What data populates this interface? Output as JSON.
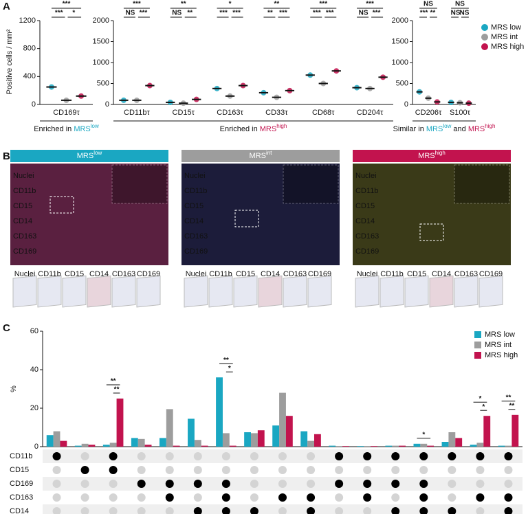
{
  "panel_labels": [
    "A",
    "B",
    "C"
  ],
  "chart_data": [
    {
      "type": "dot",
      "y_label": "Positive cells / mm²",
      "categories": [
        "CD169τ"
      ],
      "series": [
        {
          "color": "#1aa7c2",
          "values": [
            250
          ]
        },
        {
          "color": "#9d9d9d",
          "values": [
            60
          ]
        },
        {
          "color": "#c2134e",
          "values": [
            120
          ]
        }
      ],
      "ylim": [
        0,
        1200
      ],
      "yticks": [
        0,
        400,
        800,
        1200
      ],
      "significance": [
        [
          "***",
          "***",
          "*"
        ]
      ],
      "group_label": [
        {
          "text": "Enriched in "
        },
        {
          "text": "MRS",
          "color": "#1aa7c2"
        },
        {
          "text": "low",
          "color": "#1aa7c2",
          "sup": true
        }
      ]
    },
    {
      "type": "dot",
      "categories": [
        "CD11bτ",
        "CD15τ",
        "CD163τ",
        "CD33τ",
        "CD68τ",
        "CD204τ"
      ],
      "series": [
        {
          "color": "#1aa7c2",
          "values": [
            100,
            50,
            380,
            280,
            700,
            400
          ]
        },
        {
          "color": "#9d9d9d",
          "values": [
            100,
            30,
            200,
            170,
            500,
            380
          ]
        },
        {
          "color": "#c2134e",
          "values": [
            450,
            120,
            450,
            330,
            800,
            650
          ]
        }
      ],
      "ylim": [
        0,
        2000
      ],
      "yticks": [
        0,
        500,
        1000,
        1500,
        2000
      ],
      "significance": [
        [
          "***",
          "NS",
          "***"
        ],
        [
          "**",
          "NS",
          "**"
        ],
        [
          "*",
          "***",
          "***"
        ],
        [
          "**",
          "**",
          "***"
        ],
        [
          "***",
          "***",
          "***"
        ],
        [
          "***",
          "NS",
          "***"
        ]
      ],
      "group_label": [
        {
          "text": "Enriched in "
        },
        {
          "text": "MRS",
          "color": "#c2134e"
        },
        {
          "text": "high",
          "color": "#c2134e",
          "sup": true
        }
      ]
    },
    {
      "type": "dot",
      "categories": [
        "CD206τ",
        "S100τ"
      ],
      "series": [
        {
          "name": "MRS low",
          "color": "#1aa7c2",
          "values": [
            300,
            50
          ]
        },
        {
          "name": "MRS int",
          "color": "#9d9d9d",
          "values": [
            150,
            40
          ]
        },
        {
          "name": "MRS high",
          "color": "#c2134e",
          "values": [
            60,
            30
          ]
        }
      ],
      "ylim": [
        0,
        2000
      ],
      "yticks": [
        0,
        500,
        1000,
        1500,
        2000
      ],
      "significance": [
        [
          "NS",
          "***",
          "**"
        ],
        [
          "NS",
          "NS",
          "NS"
        ]
      ],
      "group_label": [
        {
          "text": "Similar in "
        },
        {
          "text": "MRS",
          "color": "#1aa7c2"
        },
        {
          "text": "low",
          "color": "#1aa7c2",
          "sup": true
        },
        {
          "text": " and "
        },
        {
          "text": "MRS",
          "color": "#c2134e"
        },
        {
          "text": "high",
          "color": "#c2134e",
          "sup": true
        }
      ]
    },
    {
      "type": "bar",
      "y_label": "%",
      "categories": [
        null,
        null,
        null,
        null,
        null,
        null,
        null,
        null,
        null,
        null,
        null,
        null,
        null,
        null,
        null,
        null,
        null
      ],
      "series": [
        {
          "name": "MRS low",
          "color": "#1aa7c2",
          "values": [
            6,
            0.5,
            1,
            4.5,
            4.5,
            14.5,
            36,
            7.5,
            11,
            8,
            0.5,
            0.3,
            0.5,
            1.5,
            2.5,
            1,
            0.5
          ]
        },
        {
          "name": "MRS int",
          "color": "#9d9d9d",
          "values": [
            8,
            1.5,
            2,
            4,
            19.5,
            3.5,
            7,
            7,
            28,
            3,
            0.3,
            0.3,
            0.5,
            1.5,
            7.5,
            2,
            0.5
          ]
        },
        {
          "name": "MRS high",
          "color": "#c2134e",
          "values": [
            3,
            1,
            25,
            1,
            0.5,
            0.5,
            0.5,
            8.5,
            16,
            6.5,
            0.3,
            0.3,
            0.5,
            0.5,
            4.5,
            16,
            16.5
          ]
        }
      ],
      "ylim": [
        0,
        60
      ],
      "yticks": [
        0,
        20,
        40,
        60
      ],
      "significance": [
        [],
        [],
        [
          "**",
          "**"
        ],
        [],
        [],
        [],
        [
          "**",
          "*"
        ],
        [],
        [],
        [],
        [],
        [],
        [],
        [
          "*"
        ],
        [],
        [
          "*",
          "*"
        ],
        [
          "**",
          "**"
        ]
      ],
      "matrix_rows": [
        "CD11b",
        "CD15",
        "CD169",
        "CD163",
        "CD14"
      ],
      "matrix": [
        [
          true,
          false,
          true,
          false,
          false,
          false,
          false,
          false,
          false,
          false,
          true,
          true,
          true,
          true,
          true,
          true,
          true
        ],
        [
          false,
          true,
          true,
          false,
          false,
          false,
          false,
          false,
          false,
          false,
          false,
          false,
          false,
          false,
          false,
          false,
          false
        ],
        [
          false,
          false,
          false,
          true,
          true,
          true,
          true,
          false,
          false,
          false,
          true,
          true,
          true,
          true,
          false,
          false,
          false
        ],
        [
          false,
          false,
          false,
          false,
          true,
          false,
          true,
          false,
          true,
          true,
          false,
          true,
          false,
          true,
          false,
          true,
          true
        ],
        [
          false,
          false,
          false,
          false,
          false,
          true,
          true,
          true,
          false,
          true,
          false,
          false,
          true,
          true,
          true,
          false,
          true
        ]
      ]
    }
  ],
  "panel_b": {
    "panels": [
      {
        "title": [
          {
            "text": "MRS"
          },
          {
            "text": "low",
            "sup": true
          }
        ],
        "color": "#1aa7c2"
      },
      {
        "title": [
          {
            "text": "MRS"
          },
          {
            "text": "int",
            "sup": true
          }
        ],
        "color": "#9d9d9d"
      },
      {
        "title": [
          {
            "text": "MRS"
          },
          {
            "text": "high",
            "sup": true
          }
        ],
        "color": "#c2134e"
      }
    ],
    "channels": [
      {
        "name": "Nuclei",
        "color": "#cccccc"
      },
      {
        "name": "CD11b",
        "color": "#33dd33"
      },
      {
        "name": "CD15",
        "color": "#eeee33"
      },
      {
        "name": "CD14",
        "color": "#ff9933"
      },
      {
        "name": "CD163",
        "color": "#3344ff"
      },
      {
        "name": "CD169",
        "color": "#ff2222"
      }
    ],
    "thumbnail_labels": [
      "Nuclei",
      "CD11b",
      "CD15",
      "CD14",
      "CD163",
      "CD169"
    ]
  }
}
